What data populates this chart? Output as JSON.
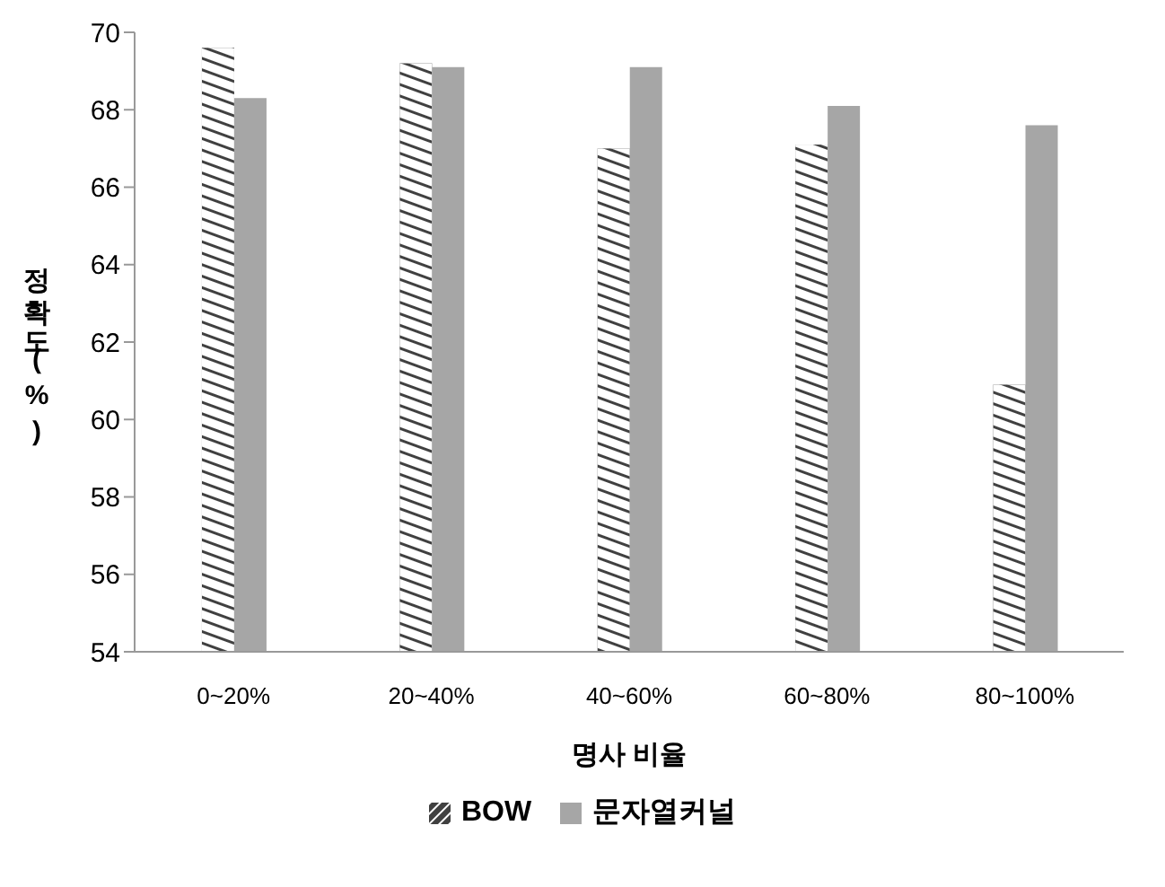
{
  "chart_data": {
    "type": "bar",
    "xlabel": "명사 비율",
    "ylabel": "정확도(%)",
    "categories": [
      "0~20%",
      "20~40%",
      "40~60%",
      "60~80%",
      "80~100%"
    ],
    "series": [
      {
        "name": "BOW",
        "color": "#404040",
        "values": [
          69.6,
          69.2,
          67.0,
          67.1,
          60.9
        ]
      },
      {
        "name": "문자열커널",
        "color": "#a6a6a6",
        "values": [
          68.3,
          69.1,
          69.1,
          68.1,
          67.6
        ]
      }
    ],
    "ylim": [
      54,
      70
    ],
    "yticks": [
      54,
      56,
      58,
      60,
      62,
      64,
      66,
      68,
      70
    ],
    "grid": false,
    "legend": "bottom"
  }
}
